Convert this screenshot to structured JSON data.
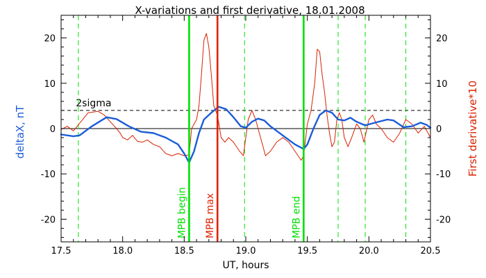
{
  "chart_data": {
    "type": "line",
    "title": "X-variations and first derivative, 18.01.2008",
    "xlabel": "UT, hours",
    "ylabel_left": "deltaX, nT",
    "ylabel_right": "First derivative*10",
    "xlim": [
      17.5,
      20.5
    ],
    "ylim": [
      -25,
      25
    ],
    "x_ticks": [
      "17.5",
      "18.0",
      "18.5",
      "19.0",
      "19.5",
      "20.0",
      "20.5"
    ],
    "y_ticks": [
      "-20",
      "-10",
      "0",
      "10",
      "20"
    ],
    "threshold": {
      "label": "2sigma",
      "value": 4
    },
    "zero_line": 0,
    "markers": [
      {
        "label": "MPB begin",
        "x": 18.54,
        "color": "#00e000"
      },
      {
        "label": "MPB max",
        "x": 18.77,
        "color": "#e02000"
      },
      {
        "label": "MPB end",
        "x": 19.47,
        "color": "#00e000"
      }
    ],
    "dashed_lines": [
      17.64,
      18.54,
      18.99,
      19.47,
      19.75,
      19.97,
      20.3
    ],
    "series": [
      {
        "name": "deltaX, nT",
        "color": "#1a5cd8",
        "points": [
          [
            17.5,
            -1.3
          ],
          [
            17.6,
            -1.7
          ],
          [
            17.65,
            -1.5
          ],
          [
            17.75,
            0.5
          ],
          [
            17.87,
            2.5
          ],
          [
            17.95,
            2.1
          ],
          [
            18.05,
            0.5
          ],
          [
            18.15,
            -0.7
          ],
          [
            18.25,
            -1.0
          ],
          [
            18.35,
            -2.0
          ],
          [
            18.45,
            -3.5
          ],
          [
            18.5,
            -5.5
          ],
          [
            18.54,
            -7.5
          ],
          [
            18.58,
            -5
          ],
          [
            18.62,
            -1
          ],
          [
            18.66,
            2
          ],
          [
            18.72,
            3.5
          ],
          [
            18.78,
            4.8
          ],
          [
            18.84,
            4.3
          ],
          [
            18.9,
            2.5
          ],
          [
            18.96,
            0.5
          ],
          [
            19.0,
            0.2
          ],
          [
            19.05,
            1.5
          ],
          [
            19.1,
            2.2
          ],
          [
            19.15,
            1.8
          ],
          [
            19.2,
            0.5
          ],
          [
            19.3,
            -1.5
          ],
          [
            19.4,
            -3.5
          ],
          [
            19.47,
            -4.5
          ],
          [
            19.5,
            -3.5
          ],
          [
            19.55,
            0
          ],
          [
            19.6,
            3
          ],
          [
            19.65,
            4.0
          ],
          [
            19.7,
            3.5
          ],
          [
            19.75,
            2.0
          ],
          [
            19.8,
            1.8
          ],
          [
            19.85,
            2.4
          ],
          [
            19.9,
            1.5
          ],
          [
            19.97,
            0.7
          ],
          [
            20.05,
            1.3
          ],
          [
            20.15,
            2.0
          ],
          [
            20.2,
            1.8
          ],
          [
            20.28,
            0.3
          ],
          [
            20.35,
            0.5
          ],
          [
            20.42,
            1.3
          ],
          [
            20.47,
            0.8
          ],
          [
            20.5,
            0.2
          ]
        ]
      },
      {
        "name": "First derivative*10",
        "color": "#d82000",
        "points": [
          [
            17.5,
            -0.2
          ],
          [
            17.55,
            0.5
          ],
          [
            17.6,
            -0.5
          ],
          [
            17.66,
            1.5
          ],
          [
            17.72,
            3.5
          ],
          [
            17.8,
            3.8
          ],
          [
            17.85,
            3.0
          ],
          [
            17.9,
            1.5
          ],
          [
            17.95,
            0
          ],
          [
            17.98,
            -1
          ],
          [
            18.0,
            -2
          ],
          [
            18.04,
            -2.5
          ],
          [
            18.08,
            -1.5
          ],
          [
            18.12,
            -2.8
          ],
          [
            18.16,
            -3
          ],
          [
            18.2,
            -2.5
          ],
          [
            18.25,
            -3.5
          ],
          [
            18.3,
            -4
          ],
          [
            18.35,
            -5.5
          ],
          [
            18.4,
            -6
          ],
          [
            18.45,
            -5.5
          ],
          [
            18.5,
            -6
          ],
          [
            18.54,
            -5.8
          ],
          [
            18.56,
            0
          ],
          [
            18.6,
            2
          ],
          [
            18.62,
            5
          ],
          [
            18.64,
            12
          ],
          [
            18.66,
            19.5
          ],
          [
            18.68,
            21
          ],
          [
            18.7,
            18
          ],
          [
            18.72,
            12
          ],
          [
            18.74,
            5
          ],
          [
            18.77,
            3
          ],
          [
            18.8,
            -2
          ],
          [
            18.83,
            -3
          ],
          [
            18.86,
            -2
          ],
          [
            18.9,
            -3
          ],
          [
            18.95,
            -5
          ],
          [
            18.98,
            -6
          ],
          [
            19.0,
            -2
          ],
          [
            19.02,
            2
          ],
          [
            19.05,
            4
          ],
          [
            19.08,
            2
          ],
          [
            19.1,
            0
          ],
          [
            19.13,
            -3
          ],
          [
            19.16,
            -6
          ],
          [
            19.2,
            -5
          ],
          [
            19.25,
            -3
          ],
          [
            19.3,
            -2
          ],
          [
            19.35,
            -3
          ],
          [
            19.4,
            -5
          ],
          [
            19.45,
            -7
          ],
          [
            19.47,
            -6
          ],
          [
            19.5,
            1
          ],
          [
            19.53,
            4
          ],
          [
            19.56,
            10
          ],
          [
            19.58,
            17.5
          ],
          [
            19.6,
            17
          ],
          [
            19.62,
            12
          ],
          [
            19.64,
            8
          ],
          [
            19.66,
            3
          ],
          [
            19.68,
            -1
          ],
          [
            19.7,
            -4
          ],
          [
            19.72,
            -3
          ],
          [
            19.74,
            2
          ],
          [
            19.76,
            3.5
          ],
          [
            19.78,
            2
          ],
          [
            19.8,
            -2
          ],
          [
            19.83,
            -4
          ],
          [
            19.86,
            -2
          ],
          [
            19.9,
            1
          ],
          [
            19.93,
            0
          ],
          [
            19.96,
            -3
          ],
          [
            20.0,
            2
          ],
          [
            20.03,
            3
          ],
          [
            20.06,
            1
          ],
          [
            20.1,
            0
          ],
          [
            20.15,
            -2
          ],
          [
            20.2,
            -3
          ],
          [
            20.25,
            -1
          ],
          [
            20.3,
            2
          ],
          [
            20.35,
            1
          ],
          [
            20.4,
            -1
          ],
          [
            20.45,
            0.5
          ],
          [
            20.5,
            -2
          ]
        ]
      }
    ]
  }
}
